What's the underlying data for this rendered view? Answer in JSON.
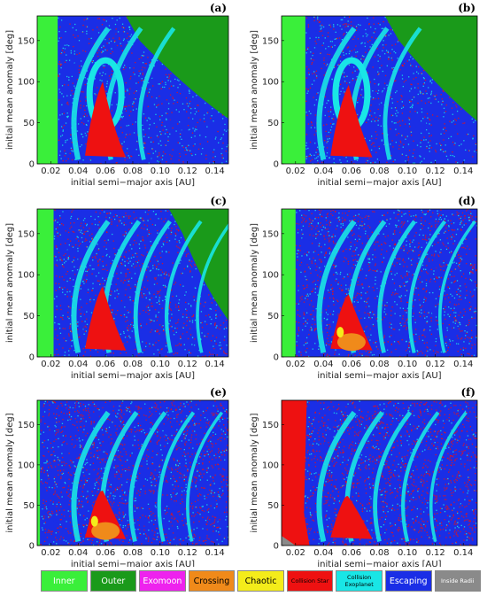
{
  "chart_data": [
    {
      "type": "heatmap",
      "panel_label": "(a)",
      "xlabel": "initial semi−major axis [AU]",
      "ylabel": "initial mean anomaly [deg]",
      "xlim": [
        0.01,
        0.15
      ],
      "ylim": [
        0,
        180
      ],
      "xticks": [
        "0.02",
        "0.04",
        "0.06",
        "0.08",
        "0.10",
        "0.12",
        "0.14"
      ],
      "yticks": [
        "0",
        "50",
        "100",
        "150"
      ],
      "inner_edge": 0.025,
      "scale": 0.0
    },
    {
      "type": "heatmap",
      "panel_label": "(b)",
      "xlabel": "initial semi−major axis [AU]",
      "ylabel": "initial mean anomaly [deg]",
      "xlim": [
        0.01,
        0.15
      ],
      "ylim": [
        0,
        180
      ],
      "xticks": [
        "0.02",
        "0.04",
        "0.06",
        "0.08",
        "0.10",
        "0.12",
        "0.14"
      ],
      "yticks": [
        "0",
        "50",
        "100",
        "150"
      ],
      "inner_edge": 0.027,
      "scale": 0.1
    },
    {
      "type": "heatmap",
      "panel_label": "(c)",
      "xlabel": "initial semi−major axis [AU]",
      "ylabel": "initial mean anomaly [deg]",
      "xlim": [
        0.01,
        0.15
      ],
      "ylim": [
        0,
        180
      ],
      "xticks": [
        "0.02",
        "0.04",
        "0.06",
        "0.08",
        "0.10",
        "0.12",
        "0.14"
      ],
      "yticks": [
        "0",
        "50",
        "100",
        "150"
      ],
      "inner_edge": 0.022,
      "scale": 0.35
    },
    {
      "type": "heatmap",
      "panel_label": "(d)",
      "xlabel": "initial semi−major axis [AU]",
      "ylabel": "initial mean anomaly [deg]",
      "xlim": [
        0.01,
        0.15
      ],
      "ylim": [
        0,
        180
      ],
      "xticks": [
        "0.02",
        "0.04",
        "0.06",
        "0.08",
        "0.10",
        "0.12",
        "0.14"
      ],
      "yticks": [
        "0",
        "50",
        "100",
        "150"
      ],
      "inner_edge": 0.02,
      "scale": 0.6
    },
    {
      "type": "heatmap",
      "panel_label": "(e)",
      "xlabel": "initial semi−major axis [AU]",
      "ylabel": "initial mean anomaly [deg]",
      "xlim": [
        0.01,
        0.15
      ],
      "ylim": [
        0,
        180
      ],
      "xticks": [
        "0.02",
        "0.04",
        "0.06",
        "0.08",
        "0.10",
        "0.12",
        "0.14"
      ],
      "yticks": [
        "0",
        "50",
        "100",
        "150"
      ],
      "inner_edge": 0.012,
      "scale": 0.8
    },
    {
      "type": "heatmap",
      "panel_label": "(f)",
      "xlabel": "initial semi−major axis [AU]",
      "ylabel": "initial mean anomaly [deg]",
      "xlim": [
        0.01,
        0.15
      ],
      "ylim": [
        0,
        180
      ],
      "xticks": [
        "0.02",
        "0.04",
        "0.06",
        "0.08",
        "0.10",
        "0.12",
        "0.14"
      ],
      "yticks": [
        "0",
        "50",
        "100",
        "150"
      ],
      "inner_edge": 0.01,
      "scale": 1.0
    }
  ],
  "legend": [
    {
      "label": "Inner",
      "color": "#3aef3a",
      "text_color": "#ffffff"
    },
    {
      "label": "Outer",
      "color": "#1a9a1a",
      "text_color": "#ffffff"
    },
    {
      "label": "Exomoon",
      "color": "#ee22ee",
      "text_color": "#ffffff"
    },
    {
      "label": "Crossing",
      "color": "#f08a1a",
      "text_color": "#000000"
    },
    {
      "label": "Chaotic",
      "color": "#f4ec1a",
      "text_color": "#000000"
    },
    {
      "label": "Collision Star",
      "color": "#ee1111",
      "text_color": "#000000",
      "small": true
    },
    {
      "label": "Collision Exoplanet",
      "color": "#19e6e6",
      "text_color": "#000000",
      "small": true
    },
    {
      "label": "Escaping",
      "color": "#1a2ee6",
      "text_color": "#ffffff"
    },
    {
      "label": "Inside Radii",
      "color": "#8a8a8a",
      "text_color": "#ffffff",
      "small": true
    }
  ]
}
